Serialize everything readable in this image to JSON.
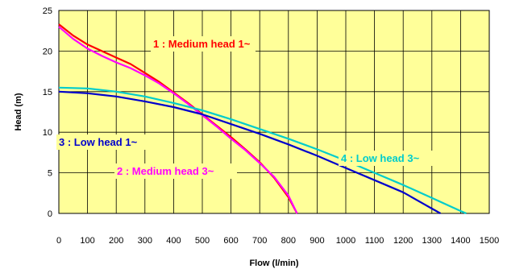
{
  "chart_data": {
    "type": "line",
    "xlabel": "Flow (l/min)",
    "ylabel": "Head (m)",
    "xlim": [
      0,
      1500
    ],
    "ylim": [
      0,
      25
    ],
    "x_ticks": [
      0,
      100,
      200,
      300,
      400,
      500,
      600,
      700,
      800,
      900,
      1000,
      1100,
      1200,
      1300,
      1400,
      1500
    ],
    "y_ticks": [
      0,
      5,
      10,
      15,
      20,
      25
    ],
    "grid": true,
    "legend": "none",
    "colors": {
      "plot_background": "#ffff99",
      "grid": "#000000"
    },
    "series": [
      {
        "name": "1 : Medium head 1~",
        "color": "#ff0000",
        "points": [
          [
            0,
            23.3
          ],
          [
            50,
            21.9
          ],
          [
            100,
            20.8
          ],
          [
            150,
            20.0
          ],
          [
            200,
            19.2
          ],
          [
            250,
            18.4
          ],
          [
            300,
            17.3
          ],
          [
            350,
            16.2
          ],
          [
            400,
            14.9
          ],
          [
            450,
            13.6
          ],
          [
            500,
            12.2
          ],
          [
            550,
            10.8
          ],
          [
            600,
            9.4
          ],
          [
            650,
            7.9
          ],
          [
            700,
            6.3
          ],
          [
            750,
            4.4
          ],
          [
            800,
            2.0
          ],
          [
            830,
            0.0
          ]
        ]
      },
      {
        "name": "2 : Medium head 3~",
        "color": "#ff00ff",
        "points": [
          [
            0,
            23.0
          ],
          [
            50,
            21.5
          ],
          [
            100,
            20.3
          ],
          [
            150,
            19.4
          ],
          [
            200,
            18.6
          ],
          [
            250,
            17.9
          ],
          [
            300,
            17.0
          ],
          [
            350,
            16.0
          ],
          [
            400,
            14.8
          ],
          [
            450,
            13.5
          ],
          [
            500,
            12.1
          ],
          [
            550,
            10.7
          ],
          [
            600,
            9.2
          ],
          [
            650,
            7.8
          ],
          [
            700,
            6.2
          ],
          [
            750,
            4.5
          ],
          [
            800,
            2.2
          ],
          [
            830,
            0.0
          ]
        ]
      },
      {
        "name": "3 : Low head 1~",
        "color": "#0000cc",
        "points": [
          [
            0,
            15.0
          ],
          [
            100,
            14.8
          ],
          [
            200,
            14.4
          ],
          [
            300,
            13.8
          ],
          [
            400,
            13.1
          ],
          [
            500,
            12.2
          ],
          [
            600,
            11.0
          ],
          [
            700,
            9.8
          ],
          [
            800,
            8.5
          ],
          [
            900,
            7.1
          ],
          [
            1000,
            5.6
          ],
          [
            1100,
            4.1
          ],
          [
            1200,
            2.6
          ],
          [
            1300,
            0.6
          ],
          [
            1330,
            0.0
          ]
        ]
      },
      {
        "name": "4 : Low head 3~",
        "color": "#00cccc",
        "points": [
          [
            0,
            15.5
          ],
          [
            100,
            15.4
          ],
          [
            200,
            15.0
          ],
          [
            300,
            14.4
          ],
          [
            400,
            13.6
          ],
          [
            500,
            12.7
          ],
          [
            600,
            11.6
          ],
          [
            700,
            10.4
          ],
          [
            800,
            9.2
          ],
          [
            900,
            7.9
          ],
          [
            1000,
            6.5
          ],
          [
            1100,
            5.0
          ],
          [
            1200,
            3.5
          ],
          [
            1300,
            1.9
          ],
          [
            1400,
            0.3
          ],
          [
            1420,
            0.0
          ]
        ]
      }
    ]
  }
}
